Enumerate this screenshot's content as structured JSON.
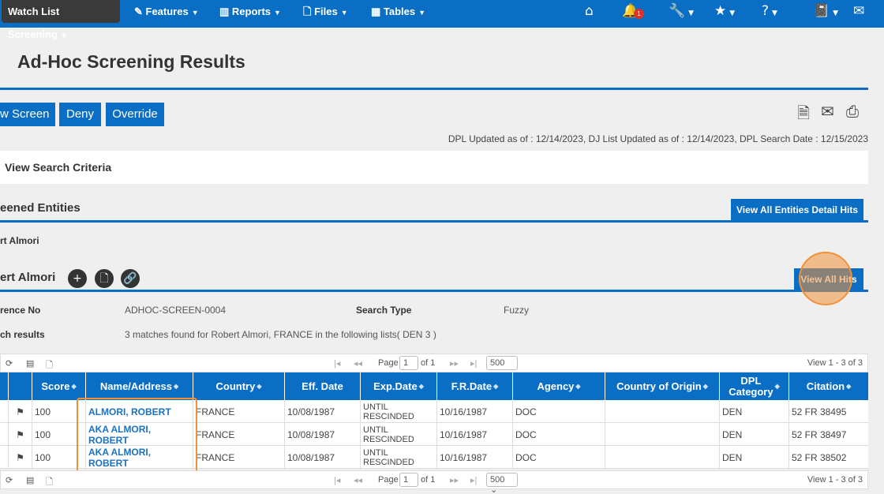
{
  "nav": {
    "active": "Watch List Screening",
    "menus": [
      "Features",
      "Reports",
      "Files",
      "Tables"
    ],
    "badge": "1",
    "icons": [
      "home-icon",
      "bell-icon",
      "wrench-icon",
      "star-icon",
      "help-icon",
      "book-icon",
      "mail-icon"
    ]
  },
  "page": {
    "title": "Ad-Hoc Screening Results"
  },
  "actions": [
    "w Screen",
    "Deny",
    "Override"
  ],
  "dates": "DPL Updated as of : 12/14/2023,  DJ List Updated as of : 12/14/2023,  DPL Search Date : 12/15/2023",
  "criteria": "View Search Criteria",
  "screened": {
    "heading": "eened Entities",
    "button": "View All Entities Detail Hits",
    "entity": "rt Almori"
  },
  "entity": {
    "name": "ert Almori",
    "button": "View All Hits",
    "ref_label": "rence No",
    "ref_value": "ADHOC-SCREEN-0004",
    "type_label": "Search Type",
    "type_value": "Fuzzy",
    "results_label": "ch results",
    "results_value": "3 matches found for  Robert Almori, FRANCE  in the following lists( DEN 3 )"
  },
  "pager": {
    "page_label": "Page",
    "page": "1",
    "of": "of 1",
    "size": "500",
    "view": "View 1 - 3 of 3"
  },
  "table": {
    "headers": [
      "Score",
      "Name/Address",
      "Country",
      "Eff. Date",
      "Exp.Date",
      "F.R.Date",
      "Agency",
      "Country of Origin",
      "DPL Category",
      "Citation"
    ],
    "rows": [
      {
        "score": "100",
        "name": "ALMORI, ROBERT",
        "country": "FRANCE",
        "eff": "10/08/1987",
        "exp": "UNTIL RESCINDED",
        "fr": "10/16/1987",
        "agency": "DOC",
        "origin": "",
        "cat": "DEN",
        "cit": "52 FR 38495"
      },
      {
        "score": "100",
        "name": "AKA ALMORI, ROBERT",
        "country": "FRANCE",
        "eff": "10/08/1987",
        "exp": "UNTIL RESCINDED",
        "fr": "10/16/1987",
        "agency": "DOC",
        "origin": "",
        "cat": "DEN",
        "cit": "52 FR 38497"
      },
      {
        "score": "100",
        "name": "AKA ALMORI, ROBERT",
        "country": "FRANCE",
        "eff": "10/08/1987",
        "exp": "UNTIL RESCINDED",
        "fr": "10/16/1987",
        "agency": "DOC",
        "origin": "",
        "cat": "DEN",
        "cit": "52 FR 38502"
      }
    ]
  }
}
